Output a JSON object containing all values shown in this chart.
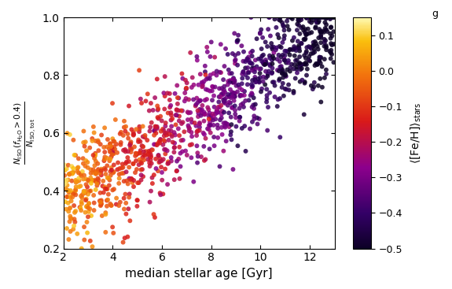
{
  "title": "",
  "xlabel": "median stellar age [Gyr]",
  "ylabel": "N_ISO(f_H2O>0.4)\n/ N_ISO,tot",
  "xlim": [
    2,
    13
  ],
  "ylim": [
    0.2,
    1.0
  ],
  "xticks": [
    2,
    4,
    6,
    8,
    10,
    12
  ],
  "yticks": [
    0.2,
    0.4,
    0.6,
    0.8,
    1.0
  ],
  "cmap": "YlOrRd_r_blend",
  "clim": [
    -0.5,
    0.15
  ],
  "cbar_ticks": [
    0.1,
    0.0,
    -0.1,
    -0.2,
    -0.3,
    -0.4,
    -0.5
  ],
  "cbar_label": "⟨[Fe/H]⟩_stars",
  "n_points": 1200,
  "seed": 42,
  "background_color": "#ffffff",
  "marker_size": 18,
  "alpha": 0.85
}
